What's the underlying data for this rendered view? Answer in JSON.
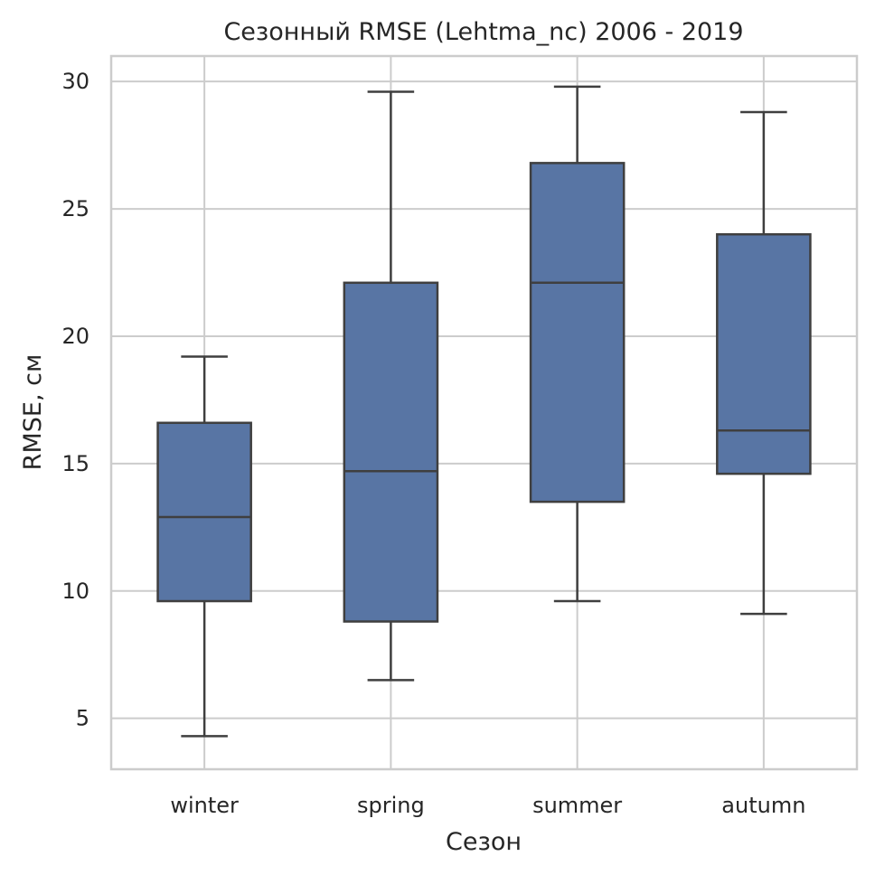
{
  "chart_data": {
    "type": "box",
    "title": "Сезонный RMSE (Lehtma_nc) 2006 - 2019",
    "xlabel": "Сезон",
    "ylabel": "RMSE, см",
    "ylim": [
      3,
      31
    ],
    "yticks": [
      5,
      10,
      15,
      20,
      25,
      30
    ],
    "grid": true,
    "box_color": "#5875a4",
    "line_color": "#3f3f3f",
    "grid_color": "#cccccc",
    "categories": [
      "winter",
      "spring",
      "summer",
      "autumn"
    ],
    "boxes": [
      {
        "category": "winter",
        "whisker_low": 4.3,
        "q1": 9.6,
        "median": 12.9,
        "q3": 16.6,
        "whisker_high": 19.2
      },
      {
        "category": "spring",
        "whisker_low": 6.5,
        "q1": 8.8,
        "median": 14.7,
        "q3": 22.1,
        "whisker_high": 29.6
      },
      {
        "category": "summer",
        "whisker_low": 9.6,
        "q1": 13.5,
        "median": 22.1,
        "q3": 26.8,
        "whisker_high": 29.8
      },
      {
        "category": "autumn",
        "whisker_low": 9.1,
        "q1": 14.6,
        "median": 16.3,
        "q3": 24.0,
        "whisker_high": 28.8
      }
    ]
  }
}
